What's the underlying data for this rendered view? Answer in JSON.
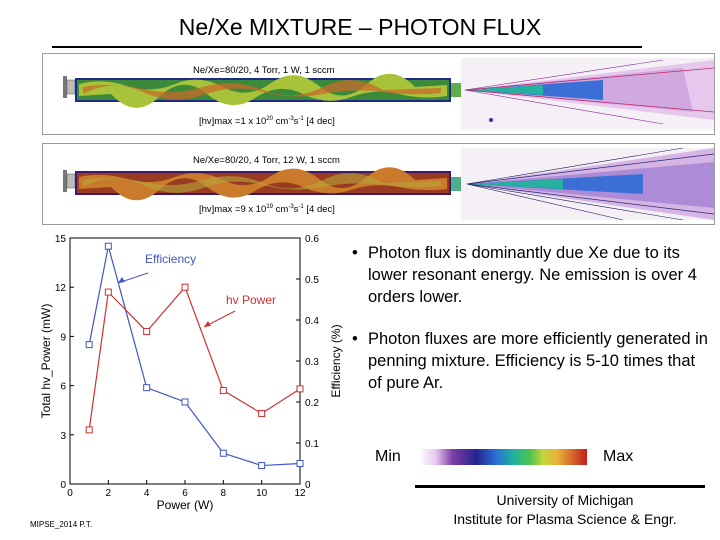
{
  "title": "Ne/Xe MIXTURE – PHOTON FLUX",
  "simulations": [
    {
      "caption_top": "Ne/Xe=80/20, 4 Torr, 1 W, 1 sccm",
      "caption_bottom_prefix": "[hv]max =1 x 10",
      "caption_bottom_exp1": "20",
      "caption_bottom_mid": " cm",
      "caption_bottom_exp2": "-3",
      "caption_bottom_mid2": "s",
      "caption_bottom_exp3": "-1",
      "caption_bottom_suffix": "  [4 dec]"
    },
    {
      "caption_top": "Ne/Xe=80/20, 4 Torr, 12 W, 1 sccm",
      "caption_bottom_prefix": "[hv]max =9 x 10",
      "caption_bottom_exp1": "19",
      "caption_bottom_mid": " cm",
      "caption_bottom_exp2": "-3",
      "caption_bottom_mid2": "s",
      "caption_bottom_exp3": "-1",
      "caption_bottom_suffix": "  [4 dec]"
    }
  ],
  "bullets": [
    "Photon flux is dominantly due Xe due to its lower resonant energy. Ne emission is over 4 orders lower.",
    "Photon fluxes are more efficiently generated in penning mixture. Efficiency is 5-10 times that of pure Ar."
  ],
  "bullet_symbol": "•",
  "scale": {
    "min_label": "Min",
    "max_label": "Max"
  },
  "university": "University of Michigan",
  "institute": "Institute for Plasma Science & Engr.",
  "footer": "MIPSE_2014 P.T.",
  "colors": {
    "efficiency": "#4055c8",
    "power": "#d03030"
  },
  "chart_data": {
    "type": "line",
    "x": [
      1,
      2,
      4,
      6,
      8,
      10,
      12
    ],
    "xlabel": "Power (W)",
    "xticks": [
      "0",
      "2",
      "4",
      "6",
      "8",
      "10",
      "12"
    ],
    "xlim": [
      0,
      12
    ],
    "ylabel": "Total hv_Power (mW)",
    "yticks": [
      "0",
      "3",
      "6",
      "9",
      "12",
      "15"
    ],
    "ylim": [
      0,
      15
    ],
    "y2label": "Efficiency (%)",
    "y2ticks": [
      "0",
      "0.1",
      "0.2",
      "0.3",
      "0.4",
      "0.5",
      "0.6"
    ],
    "y2lim": [
      0,
      0.6
    ],
    "series": [
      {
        "name": "Efficiency",
        "axis": "right",
        "values": [
          0.34,
          0.58,
          0.235,
          0.2,
          0.075,
          0.045,
          0.05
        ]
      },
      {
        "name": "hv Power",
        "axis": "left",
        "values": [
          3.3,
          11.7,
          9.3,
          12.0,
          5.7,
          4.3,
          5.8
        ]
      }
    ]
  }
}
